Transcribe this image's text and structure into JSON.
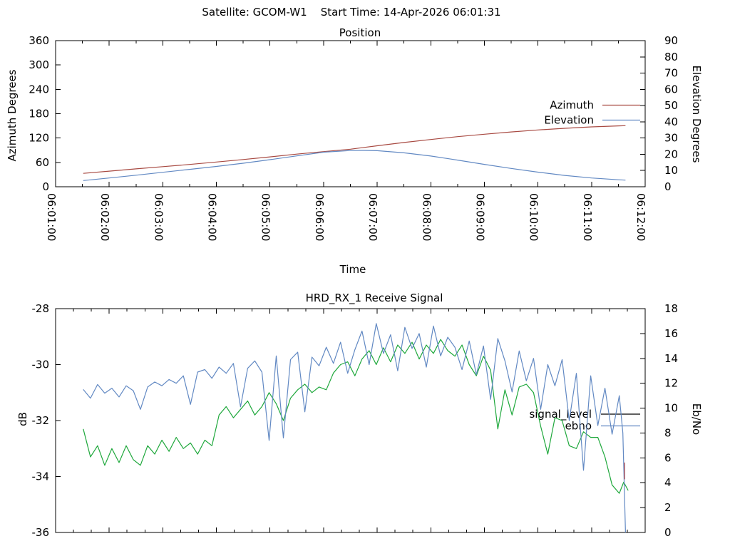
{
  "header": {
    "title": "Satellite: GCOM-W1    Start Time: 14-Apr-2026 06:01:31"
  },
  "chart_data": [
    {
      "type": "line",
      "title": "Position",
      "xlabel": "Time",
      "ylabel_left": "Azimuth Degrees",
      "ylabel_right": "Elevation Degrees",
      "x_range_seconds": [
        0,
        660
      ],
      "x_tick_labels": [
        "06:01:00",
        "06:02:00",
        "06:03:00",
        "06:04:00",
        "06:05:00",
        "06:06:00",
        "06:07:00",
        "06:08:00",
        "06:09:00",
        "06:10:00",
        "06:11:00",
        "06:12:00"
      ],
      "y_left": {
        "range": [
          0,
          360
        ],
        "tick_step": 60
      },
      "y_right": {
        "range": [
          0,
          90
        ],
        "tick_step": 10
      },
      "grid": false,
      "legend_position": "right-upper-inside",
      "legend": [
        {
          "label": "Azimuth",
          "color": "#a84a42"
        },
        {
          "label": "Elevation",
          "color": "#6289c3"
        }
      ],
      "series": [
        {
          "name": "Azimuth",
          "axis": "left",
          "color": "#a84a42",
          "points": [
            [
              31,
              33
            ],
            [
              60,
              38.5
            ],
            [
              90,
              44
            ],
            [
              120,
              49.5
            ],
            [
              150,
              55
            ],
            [
              180,
              61
            ],
            [
              210,
              67
            ],
            [
              240,
              73.5
            ],
            [
              270,
              80.5
            ],
            [
              300,
              86.5
            ],
            [
              330,
              92.5
            ],
            [
              360,
              101
            ],
            [
              390,
              109
            ],
            [
              420,
              116.5
            ],
            [
              450,
              123.5
            ],
            [
              480,
              129.5
            ],
            [
              510,
              135
            ],
            [
              540,
              140
            ],
            [
              570,
              144
            ],
            [
              600,
              147.5
            ],
            [
              630,
              150
            ],
            [
              638,
              150.5
            ]
          ]
        },
        {
          "name": "Elevation",
          "axis": "right",
          "color": "#6289c3",
          "points": [
            [
              31,
              3.8
            ],
            [
              60,
              5.4
            ],
            [
              90,
              7.1
            ],
            [
              120,
              8.9
            ],
            [
              150,
              10.7
            ],
            [
              180,
              12.5
            ],
            [
              210,
              14.5
            ],
            [
              240,
              16.7
            ],
            [
              270,
              19.0
            ],
            [
              300,
              21.3
            ],
            [
              330,
              22.3
            ],
            [
              345,
              22.4
            ],
            [
              360,
              22.2
            ],
            [
              390,
              20.9
            ],
            [
              420,
              18.9
            ],
            [
              450,
              16.4
            ],
            [
              480,
              13.8
            ],
            [
              510,
              11.3
            ],
            [
              540,
              9.0
            ],
            [
              570,
              7.0
            ],
            [
              600,
              5.4
            ],
            [
              630,
              4.3
            ],
            [
              638,
              4.1
            ]
          ]
        }
      ]
    },
    {
      "type": "line",
      "title": "HRD_RX_1 Receive Signal",
      "xlabel": "",
      "ylabel_left": "dB",
      "ylabel_right": "Eb/No",
      "x_range_seconds": [
        0,
        660
      ],
      "x_tick_labels": [],
      "y_left": {
        "range": [
          -36,
          -28
        ],
        "tick_step": 2
      },
      "y_right": {
        "range": [
          0,
          18
        ],
        "tick_step": 2
      },
      "grid": false,
      "legend_position": "right-middle-inside",
      "legend": [
        {
          "label": "signal_level",
          "color": "#000000"
        },
        {
          "label": "ebno",
          "color": "#6289c3"
        }
      ],
      "series": [
        {
          "name": "signal_level",
          "axis": "left",
          "color": "#1fa83c",
          "points": [
            [
              31,
              -32.3
            ],
            [
              39,
              -33.3
            ],
            [
              47,
              -32.9
            ],
            [
              55,
              -33.6
            ],
            [
              63,
              -33.0
            ],
            [
              71,
              -33.5
            ],
            [
              79,
              -32.9
            ],
            [
              87,
              -33.4
            ],
            [
              95,
              -33.6
            ],
            [
              103,
              -32.9
            ],
            [
              111,
              -33.2
            ],
            [
              119,
              -32.7
            ],
            [
              127,
              -33.1
            ],
            [
              135,
              -32.6
            ],
            [
              143,
              -33.0
            ],
            [
              151,
              -32.8
            ],
            [
              159,
              -33.2
            ],
            [
              167,
              -32.7
            ],
            [
              175,
              -32.9
            ],
            [
              183,
              -31.8
            ],
            [
              191,
              -31.5
            ],
            [
              199,
              -31.9
            ],
            [
              207,
              -31.6
            ],
            [
              215,
              -31.3
            ],
            [
              223,
              -31.8
            ],
            [
              231,
              -31.5
            ],
            [
              239,
              -31.0
            ],
            [
              247,
              -31.4
            ],
            [
              255,
              -32.0
            ],
            [
              263,
              -31.2
            ],
            [
              271,
              -30.9
            ],
            [
              279,
              -30.7
            ],
            [
              287,
              -31.0
            ],
            [
              295,
              -30.8
            ],
            [
              303,
              -30.9
            ],
            [
              311,
              -30.3
            ],
            [
              319,
              -30.0
            ],
            [
              327,
              -29.9
            ],
            [
              335,
              -30.4
            ],
            [
              343,
              -29.8
            ],
            [
              351,
              -29.5
            ],
            [
              359,
              -30.0
            ],
            [
              367,
              -29.4
            ],
            [
              375,
              -29.9
            ],
            [
              383,
              -29.3
            ],
            [
              391,
              -29.6
            ],
            [
              399,
              -29.2
            ],
            [
              407,
              -29.8
            ],
            [
              415,
              -29.3
            ],
            [
              423,
              -29.6
            ],
            [
              431,
              -29.1
            ],
            [
              439,
              -29.5
            ],
            [
              447,
              -29.7
            ],
            [
              455,
              -29.3
            ],
            [
              463,
              -30.0
            ],
            [
              471,
              -30.4
            ],
            [
              479,
              -29.7
            ],
            [
              487,
              -30.2
            ],
            [
              495,
              -32.3
            ],
            [
              503,
              -30.9
            ],
            [
              511,
              -31.8
            ],
            [
              519,
              -30.8
            ],
            [
              527,
              -30.7
            ],
            [
              535,
              -31.0
            ],
            [
              543,
              -32.2
            ],
            [
              551,
              -33.2
            ],
            [
              559,
              -31.9
            ],
            [
              567,
              -32.0
            ],
            [
              575,
              -32.9
            ],
            [
              583,
              -33.0
            ],
            [
              591,
              -32.4
            ],
            [
              599,
              -32.6
            ],
            [
              607,
              -32.6
            ],
            [
              615,
              -33.3
            ],
            [
              623,
              -34.3
            ],
            [
              631,
              -34.6
            ],
            [
              636,
              -34.2
            ],
            [
              641,
              -34.5
            ]
          ]
        },
        {
          "name": "ebno",
          "axis": "right",
          "color": "#6289c3",
          "points": [
            [
              31,
              11.5
            ],
            [
              39,
              10.8
            ],
            [
              47,
              11.9
            ],
            [
              55,
              11.2
            ],
            [
              63,
              11.6
            ],
            [
              71,
              10.9
            ],
            [
              79,
              11.8
            ],
            [
              87,
              11.4
            ],
            [
              95,
              9.9
            ],
            [
              103,
              11.7
            ],
            [
              111,
              12.1
            ],
            [
              119,
              11.8
            ],
            [
              127,
              12.3
            ],
            [
              135,
              12.0
            ],
            [
              143,
              12.6
            ],
            [
              151,
              10.3
            ],
            [
              159,
              12.9
            ],
            [
              167,
              13.1
            ],
            [
              175,
              12.4
            ],
            [
              183,
              13.3
            ],
            [
              191,
              12.8
            ],
            [
              199,
              13.6
            ],
            [
              207,
              10.1
            ],
            [
              215,
              13.2
            ],
            [
              223,
              13.8
            ],
            [
              231,
              12.9
            ],
            [
              239,
              7.4
            ],
            [
              247,
              14.2
            ],
            [
              255,
              7.6
            ],
            [
              263,
              13.9
            ],
            [
              271,
              14.5
            ],
            [
              279,
              9.7
            ],
            [
              287,
              14.1
            ],
            [
              295,
              13.4
            ],
            [
              303,
              14.9
            ],
            [
              311,
              13.6
            ],
            [
              319,
              15.3
            ],
            [
              327,
              12.8
            ],
            [
              335,
              14.7
            ],
            [
              343,
              16.2
            ],
            [
              351,
              13.5
            ],
            [
              359,
              16.8
            ],
            [
              367,
              14.4
            ],
            [
              375,
              15.9
            ],
            [
              383,
              13.0
            ],
            [
              391,
              16.5
            ],
            [
              399,
              14.8
            ],
            [
              407,
              16.0
            ],
            [
              415,
              13.3
            ],
            [
              423,
              16.6
            ],
            [
              431,
              14.2
            ],
            [
              439,
              15.7
            ],
            [
              447,
              14.9
            ],
            [
              455,
              13.1
            ],
            [
              463,
              15.4
            ],
            [
              471,
              12.7
            ],
            [
              479,
              15.0
            ],
            [
              487,
              10.7
            ],
            [
              495,
              15.6
            ],
            [
              503,
              13.8
            ],
            [
              511,
              11.3
            ],
            [
              519,
              14.6
            ],
            [
              527,
              12.2
            ],
            [
              535,
              14.0
            ],
            [
              543,
              9.9
            ],
            [
              551,
              13.5
            ],
            [
              559,
              11.8
            ],
            [
              567,
              13.9
            ],
            [
              575,
              9.0
            ],
            [
              583,
              12.8
            ],
            [
              591,
              5.0
            ],
            [
              599,
              12.6
            ],
            [
              607,
              8.6
            ],
            [
              615,
              11.6
            ],
            [
              623,
              7.9
            ],
            [
              631,
              11.0
            ],
            [
              635,
              8.0
            ],
            [
              638,
              0.0
            ]
          ]
        },
        {
          "name": "end_marker",
          "axis": "left",
          "color": "#c0504d",
          "points": [
            [
              637,
              -33.5
            ],
            [
              637,
              -34.1
            ]
          ]
        }
      ]
    }
  ]
}
